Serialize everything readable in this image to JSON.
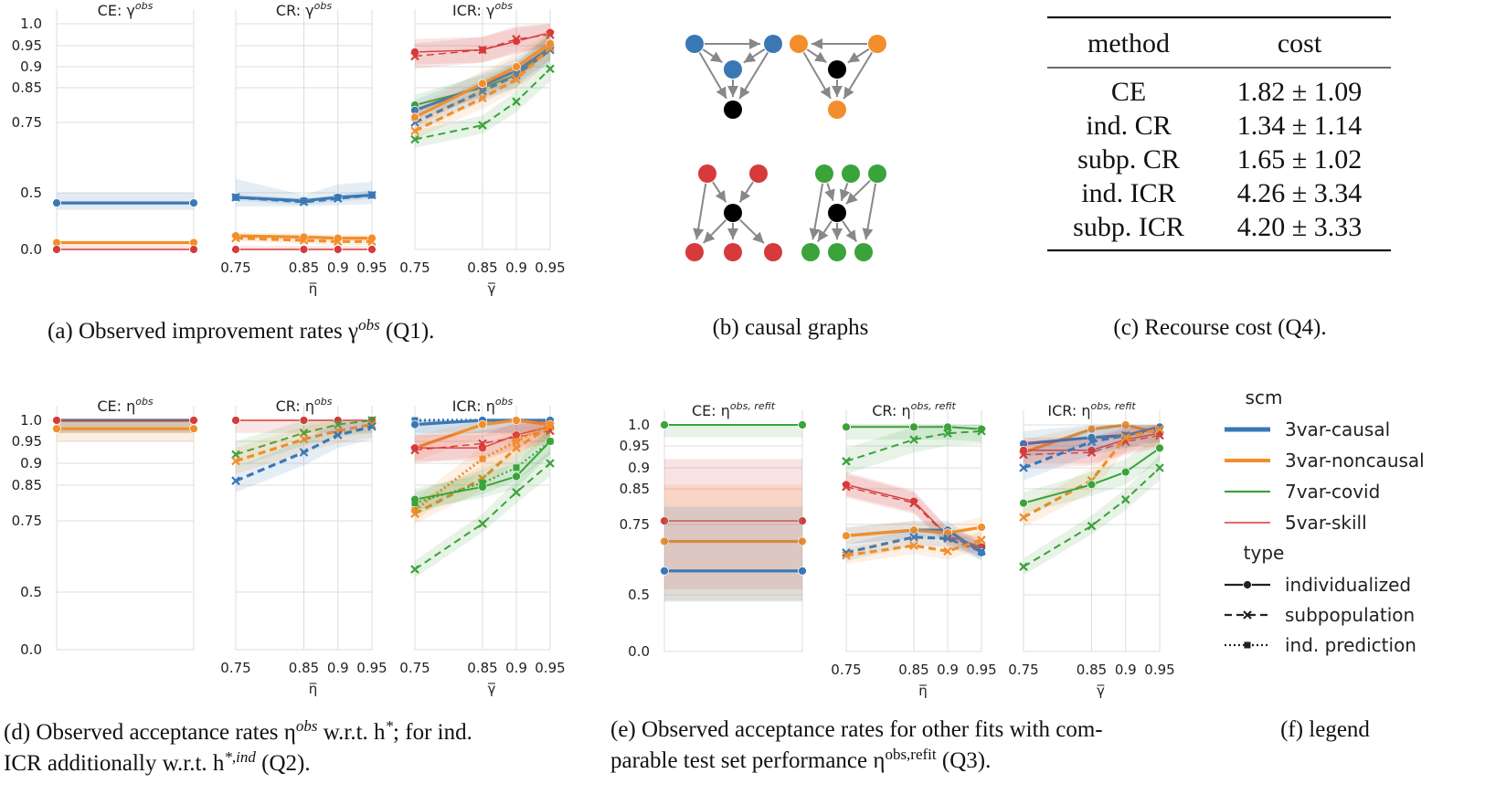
{
  "colors": {
    "3var-causal": "#3a78b5",
    "3var-noncausal": "#f28e2b",
    "7var-covid": "#3aa33a",
    "5var-skill": "#d63a3a",
    "node_black": "#000000",
    "grid": "#dddddd",
    "arrow": "#888888"
  },
  "panel_titles": {
    "a_ce": "CE: γ",
    "a_cr": "CR: γ",
    "a_icr": "ICR: γ",
    "d_ce": "CE: η",
    "d_cr": "CR: η",
    "d_icr": "ICR: η",
    "e_ce": "CE: η",
    "e_cr": "CR: η",
    "e_icr": "ICR: η",
    "sup_obs": "obs",
    "sup_refit": "obs, refit"
  },
  "axis_labels": {
    "eta_bar": "η̅",
    "gamma_bar": "γ̅"
  },
  "captions": {
    "a": "(a) Observed improvement rates γ",
    "a_sup": "obs",
    "a_end": "(Q1).",
    "b": "(b) causal graphs",
    "c": "(c) Recourse cost (Q4).",
    "d_line1": "(d) Observed acceptance rates η",
    "d_line1_sup": "obs",
    "d_line1_mid": "w.r.t. h",
    "d_line1_sup2": "*",
    "d_line1_end": "; for ind.",
    "d_line2": "ICR additionally w.r.t. h",
    "d_line2_sup": "*,ind",
    "d_line2_end": "(Q2).",
    "e_line1": "(e) Observed acceptance rates for other fits with com-",
    "e_line2": "parable test set performance η",
    "e_line2_sup": "obs,refit",
    "e_line2_end": "(Q3).",
    "f": "(f) legend"
  },
  "cost_table": {
    "headers": [
      "method",
      "cost"
    ],
    "rows": [
      [
        "CE",
        "1.82 ± 1.09"
      ],
      [
        "ind. CR",
        "1.34 ± 1.14"
      ],
      [
        "subp. CR",
        "1.65 ± 1.02"
      ],
      [
        "ind. ICR",
        "4.26 ± 3.34"
      ],
      [
        "subp. ICR",
        "4.20 ± 3.33"
      ]
    ]
  },
  "legend": {
    "scm_title": "scm",
    "scm_items": [
      "3var-causal",
      "3var-noncausal",
      "7var-covid",
      "5var-skill"
    ],
    "type_title": "type",
    "type_items": [
      "individualized",
      "subpopulation",
      "ind. prediction"
    ]
  },
  "chart_data": [
    {
      "id": "a_ce",
      "type": "line",
      "title": "CE: γ^obs",
      "x": [
        0,
        1
      ],
      "yticks": [
        "0.0",
        "0.5",
        "0.75",
        "0.85",
        "0.9",
        "0.95",
        "1.0"
      ],
      "series": [
        {
          "scm": "3var-causal",
          "type": "individualized",
          "values": [
            0.41,
            0.41
          ],
          "band": [
            0.35,
            0.5
          ]
        },
        {
          "scm": "3var-noncausal",
          "type": "individualized",
          "values": [
            0.06,
            0.06
          ],
          "band": [
            0.03,
            0.08
          ]
        },
        {
          "scm": "5var-skill",
          "type": "individualized",
          "values": [
            0.0,
            0.0
          ]
        }
      ]
    },
    {
      "id": "a_cr",
      "type": "line",
      "title": "CR: γ^obs",
      "x": [
        0.75,
        0.85,
        0.9,
        0.95
      ],
      "xlabel": "η̅",
      "series": [
        {
          "scm": "3var-causal",
          "type": "individualized",
          "values": [
            0.46,
            0.43,
            0.46,
            0.48
          ],
          "band_lo": [
            0.38,
            0.38,
            0.39,
            0.4
          ],
          "band_hi": [
            0.55,
            0.48,
            0.53,
            0.54
          ]
        },
        {
          "scm": "3var-causal",
          "type": "subpopulation",
          "values": [
            0.46,
            0.42,
            0.45,
            0.48
          ]
        },
        {
          "scm": "3var-noncausal",
          "type": "individualized",
          "values": [
            0.12,
            0.11,
            0.1,
            0.1
          ]
        },
        {
          "scm": "3var-noncausal",
          "type": "subpopulation",
          "values": [
            0.1,
            0.08,
            0.07,
            0.07
          ]
        },
        {
          "scm": "5var-skill",
          "type": "individualized",
          "values": [
            0.0,
            0.0,
            0.0,
            0.0
          ]
        }
      ]
    },
    {
      "id": "a_icr",
      "type": "line",
      "title": "ICR: γ^obs",
      "x": [
        0.75,
        0.85,
        0.9,
        0.95
      ],
      "xlabel": "γ̅",
      "series": [
        {
          "scm": "5var-skill",
          "type": "individualized",
          "values": [
            0.935,
            0.94,
            0.96,
            0.98
          ]
        },
        {
          "scm": "5var-skill",
          "type": "subpopulation",
          "values": [
            0.925,
            0.94,
            0.965,
            0.975
          ]
        },
        {
          "scm": "7var-covid",
          "type": "individualized",
          "values": [
            0.8,
            0.85,
            0.88,
            0.95
          ]
        },
        {
          "scm": "7var-covid",
          "type": "subpopulation",
          "values": [
            0.69,
            0.74,
            0.81,
            0.895
          ]
        },
        {
          "scm": "3var-causal",
          "type": "individualized",
          "values": [
            0.785,
            0.855,
            0.89,
            0.945
          ]
        },
        {
          "scm": "3var-causal",
          "type": "subpopulation",
          "values": [
            0.75,
            0.84,
            0.88,
            0.94
          ]
        },
        {
          "scm": "3var-noncausal",
          "type": "individualized",
          "values": [
            0.765,
            0.86,
            0.9,
            0.955
          ]
        },
        {
          "scm": "3var-noncausal",
          "type": "subpopulation",
          "values": [
            0.72,
            0.82,
            0.87,
            0.945
          ]
        }
      ]
    },
    {
      "id": "d_ce",
      "type": "line",
      "title": "CE: η^obs",
      "x": [
        0,
        1
      ],
      "series": [
        {
          "scm": "3var-causal",
          "type": "individualized",
          "values": [
            1.0,
            1.0
          ]
        },
        {
          "scm": "7var-covid",
          "type": "individualized",
          "values": [
            1.0,
            1.0
          ]
        },
        {
          "scm": "5var-skill",
          "type": "individualized",
          "values": [
            1.0,
            1.0
          ]
        },
        {
          "scm": "3var-noncausal",
          "type": "individualized",
          "values": [
            0.98,
            0.98
          ],
          "band": [
            0.95,
            0.995
          ]
        }
      ]
    },
    {
      "id": "d_cr",
      "type": "line",
      "title": "CR: η^obs",
      "x": [
        0.75,
        0.85,
        0.9,
        0.95
      ],
      "xlabel": "η̅",
      "series": [
        {
          "scm": "5var-skill",
          "type": "individualized",
          "values": [
            1.0,
            1.0,
            1.0,
            1.0
          ]
        },
        {
          "scm": "7var-covid",
          "type": "subpopulation",
          "values": [
            0.92,
            0.97,
            0.99,
            1.0
          ]
        },
        {
          "scm": "3var-noncausal",
          "type": "subpopulation",
          "values": [
            0.905,
            0.955,
            0.975,
            0.99
          ]
        },
        {
          "scm": "3var-causal",
          "type": "subpopulation",
          "values": [
            0.86,
            0.925,
            0.965,
            0.985
          ]
        }
      ]
    },
    {
      "id": "d_icr",
      "type": "line",
      "title": "ICR: η^obs",
      "x": [
        0.75,
        0.85,
        0.9,
        0.95
      ],
      "xlabel": "γ̅",
      "series": [
        {
          "scm": "3var-causal",
          "type": "ind. prediction",
          "values": [
            1.0,
            1.0,
            1.0,
            1.0
          ]
        },
        {
          "scm": "3var-causal",
          "type": "individualized",
          "values": [
            0.99,
            1.0,
            1.0,
            1.0
          ]
        },
        {
          "scm": "3var-noncausal",
          "type": "individualized",
          "values": [
            0.935,
            0.99,
            1.0,
            0.99
          ]
        },
        {
          "scm": "5var-skill",
          "type": "individualized",
          "values": [
            0.935,
            0.935,
            0.965,
            0.985
          ]
        },
        {
          "scm": "5var-skill",
          "type": "subpopulation",
          "values": [
            0.93,
            0.945,
            0.96,
            0.975
          ]
        },
        {
          "scm": "3var-noncausal",
          "type": "subpopulation",
          "values": [
            0.77,
            0.865,
            0.935,
            0.985
          ]
        },
        {
          "scm": "3var-noncausal",
          "type": "ind. prediction",
          "values": [
            0.78,
            0.91,
            0.95,
            0.99
          ]
        },
        {
          "scm": "7var-covid",
          "type": "individualized",
          "values": [
            0.81,
            0.845,
            0.87,
            0.95
          ]
        },
        {
          "scm": "7var-covid",
          "type": "ind. prediction",
          "values": [
            0.8,
            0.855,
            0.89,
            0.95
          ]
        },
        {
          "scm": "7var-covid",
          "type": "subpopulation",
          "values": [
            0.58,
            0.74,
            0.83,
            0.9
          ]
        }
      ]
    },
    {
      "id": "e_ce",
      "type": "line",
      "title": "CE: η^obs,refit",
      "x": [
        0,
        1
      ],
      "series": [
        {
          "scm": "7var-covid",
          "type": "individualized",
          "values": [
            1.0,
            1.0
          ]
        },
        {
          "scm": "5var-skill",
          "type": "individualized",
          "values": [
            0.76,
            0.76
          ],
          "band": [
            0.52,
            0.92
          ]
        },
        {
          "scm": "3var-noncausal",
          "type": "individualized",
          "values": [
            0.69,
            0.69
          ],
          "band": [
            0.45,
            0.86
          ]
        },
        {
          "scm": "3var-causal",
          "type": "individualized",
          "values": [
            0.585,
            0.585
          ],
          "band": [
            0.44,
            0.8
          ]
        }
      ]
    },
    {
      "id": "e_cr",
      "type": "line",
      "title": "CR: η^obs,refit",
      "x": [
        0.75,
        0.85,
        0.9,
        0.95
      ],
      "xlabel": "η̅",
      "series": [
        {
          "scm": "7var-covid",
          "type": "individualized",
          "values": [
            0.995,
            0.995,
            0.995,
            0.99
          ]
        },
        {
          "scm": "7var-covid",
          "type": "subpopulation",
          "values": [
            0.915,
            0.965,
            0.98,
            0.985
          ]
        },
        {
          "scm": "5var-skill",
          "type": "individualized",
          "values": [
            0.86,
            0.815,
            0.71,
            0.67
          ]
        },
        {
          "scm": "5var-skill",
          "type": "subpopulation",
          "values": [
            0.855,
            0.81,
            0.705,
            0.665
          ]
        },
        {
          "scm": "3var-causal",
          "type": "individualized",
          "values": [
            0.71,
            0.73,
            0.73,
            0.65
          ]
        },
        {
          "scm": "3var-noncausal",
          "type": "individualized",
          "values": [
            0.71,
            0.73,
            0.72,
            0.74
          ]
        },
        {
          "scm": "3var-causal",
          "type": "subpopulation",
          "values": [
            0.65,
            0.705,
            0.7,
            0.655
          ]
        },
        {
          "scm": "3var-noncausal",
          "type": "subpopulation",
          "values": [
            0.64,
            0.675,
            0.655,
            0.695
          ]
        }
      ]
    },
    {
      "id": "e_icr",
      "type": "line",
      "title": "ICR: η^obs,refit",
      "x": [
        0.75,
        0.85,
        0.9,
        0.95
      ],
      "xlabel": "γ̅",
      "series": [
        {
          "scm": "3var-noncausal",
          "type": "individualized",
          "values": [
            0.935,
            0.99,
            1.0,
            0.98
          ]
        },
        {
          "scm": "3var-causal",
          "type": "individualized",
          "values": [
            0.955,
            0.97,
            0.975,
            0.995
          ]
        },
        {
          "scm": "5var-skill",
          "type": "individualized",
          "values": [
            0.94,
            0.94,
            0.965,
            0.98
          ]
        },
        {
          "scm": "5var-skill",
          "type": "subpopulation",
          "values": [
            0.93,
            0.935,
            0.96,
            0.975
          ]
        },
        {
          "scm": "3var-causal",
          "type": "subpopulation",
          "values": [
            0.9,
            0.96,
            0.975,
            0.99
          ]
        },
        {
          "scm": "3var-noncausal",
          "type": "subpopulation",
          "values": [
            0.77,
            0.87,
            0.97,
            0.99
          ]
        },
        {
          "scm": "7var-covid",
          "type": "individualized",
          "values": [
            0.81,
            0.86,
            0.89,
            0.945
          ]
        },
        {
          "scm": "7var-covid",
          "type": "subpopulation",
          "values": [
            0.6,
            0.745,
            0.82,
            0.9
          ]
        }
      ]
    }
  ]
}
